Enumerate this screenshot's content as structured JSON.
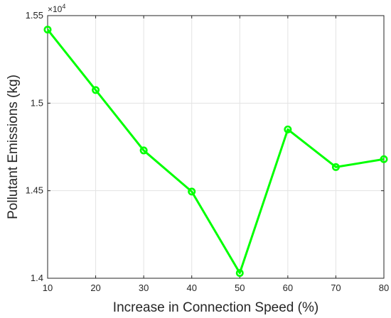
{
  "chart_data": {
    "type": "line",
    "xlabel": "Increase in Connection Speed (%)",
    "ylabel": "Pollutant Emissions (kg)",
    "y_exponent_base": "×10",
    "y_exponent_power": "4",
    "x_ticks": [
      "10",
      "20",
      "30",
      "40",
      "50",
      "60",
      "70",
      "80"
    ],
    "y_ticks": [
      "1.4",
      "1.45",
      "1.5",
      "1.55"
    ],
    "xlim": [
      10,
      80
    ],
    "ylim": [
      14000,
      15500
    ],
    "grid": true,
    "series": [
      {
        "color": "#00ff00",
        "marker": "circle",
        "x": [
          10,
          20,
          30,
          40,
          50,
          60,
          70,
          80
        ],
        "y": [
          15420,
          15075,
          14730,
          14495,
          14030,
          14850,
          14635,
          14680
        ]
      }
    ]
  }
}
